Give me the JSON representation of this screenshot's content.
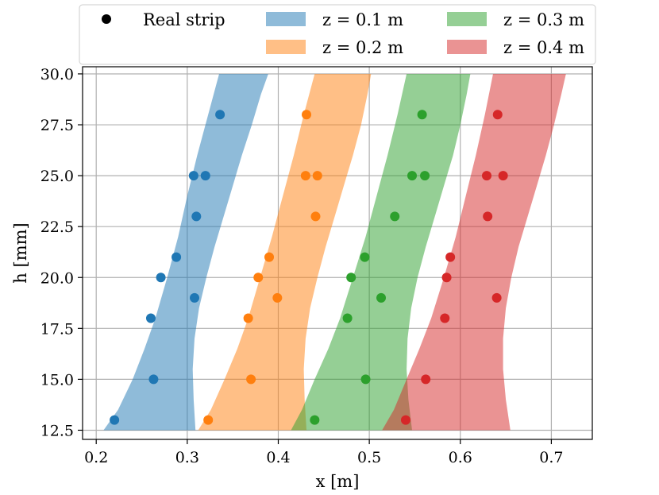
{
  "chart_data": {
    "type": "scatter",
    "xlabel": "x [m]",
    "ylabel": "h [mm]",
    "xlim": [
      0.185,
      0.745
    ],
    "ylim": [
      12.05,
      30.35
    ],
    "xticks": [
      "0.2",
      "0.3",
      "0.4",
      "0.5",
      "0.6",
      "0.7"
    ],
    "yticks": [
      "12.5",
      "15.0",
      "17.5",
      "20.0",
      "22.5",
      "25.0",
      "27.5",
      "30.0"
    ],
    "xtick_values": [
      0.2,
      0.3,
      0.4,
      0.5,
      0.6,
      0.7
    ],
    "ytick_values": [
      12.5,
      15.0,
      17.5,
      20.0,
      22.5,
      25.0,
      27.5,
      30.0
    ],
    "grid": true,
    "legend_position": "top",
    "legend": {
      "marker_label": "Real strip",
      "entries": [
        "z = 0.1 m",
        "z = 0.2 m",
        "z = 0.3 m",
        "z = 0.4 m"
      ]
    },
    "bands": [
      {
        "name": "z = 0.1 m",
        "color": "#1f77b4",
        "left": [
          [
            0.208,
            12.5
          ],
          [
            0.224,
            13.5
          ],
          [
            0.24,
            15.0
          ],
          [
            0.253,
            16.5
          ],
          [
            0.265,
            18.0
          ],
          [
            0.278,
            20.0
          ],
          [
            0.29,
            22.0
          ],
          [
            0.3,
            24.0
          ],
          [
            0.311,
            26.0
          ],
          [
            0.323,
            28.0
          ],
          [
            0.335,
            30.0
          ]
        ],
        "right": [
          [
            0.309,
            12.5
          ],
          [
            0.307,
            14.0
          ],
          [
            0.306,
            15.5
          ],
          [
            0.308,
            17.0
          ],
          [
            0.313,
            18.5
          ],
          [
            0.321,
            20.0
          ],
          [
            0.33,
            21.5
          ],
          [
            0.34,
            23.0
          ],
          [
            0.35,
            24.5
          ],
          [
            0.36,
            26.0
          ],
          [
            0.371,
            27.5
          ],
          [
            0.381,
            29.0
          ],
          [
            0.389,
            30.0
          ]
        ]
      },
      {
        "name": "z = 0.2 m",
        "color": "#ff7f0e",
        "left": [
          [
            0.312,
            12.5
          ],
          [
            0.326,
            13.5
          ],
          [
            0.341,
            15.0
          ],
          [
            0.355,
            16.5
          ],
          [
            0.367,
            18.0
          ],
          [
            0.38,
            20.0
          ],
          [
            0.393,
            22.0
          ],
          [
            0.405,
            24.0
          ],
          [
            0.417,
            26.0
          ],
          [
            0.428,
            28.0
          ],
          [
            0.44,
            30.0
          ]
        ],
        "right": [
          [
            0.431,
            12.5
          ],
          [
            0.429,
            14.0
          ],
          [
            0.428,
            15.5
          ],
          [
            0.43,
            17.0
          ],
          [
            0.435,
            18.5
          ],
          [
            0.443,
            20.0
          ],
          [
            0.452,
            21.5
          ],
          [
            0.462,
            23.0
          ],
          [
            0.472,
            24.5
          ],
          [
            0.482,
            26.0
          ],
          [
            0.491,
            27.5
          ],
          [
            0.498,
            29.0
          ],
          [
            0.502,
            30.0
          ]
        ]
      },
      {
        "name": "z = 0.3 m",
        "color": "#2ca02c",
        "left": [
          [
            0.414,
            12.5
          ],
          [
            0.426,
            13.5
          ],
          [
            0.44,
            15.0
          ],
          [
            0.455,
            16.5
          ],
          [
            0.468,
            18.0
          ],
          [
            0.482,
            20.0
          ],
          [
            0.496,
            22.0
          ],
          [
            0.508,
            24.0
          ],
          [
            0.52,
            26.0
          ],
          [
            0.531,
            28.0
          ],
          [
            0.541,
            30.0
          ]
        ],
        "right": [
          [
            0.547,
            12.5
          ],
          [
            0.543,
            14.0
          ],
          [
            0.541,
            15.5
          ],
          [
            0.542,
            17.0
          ],
          [
            0.546,
            18.5
          ],
          [
            0.553,
            20.0
          ],
          [
            0.562,
            21.5
          ],
          [
            0.572,
            23.0
          ],
          [
            0.582,
            24.5
          ],
          [
            0.592,
            26.0
          ],
          [
            0.6,
            27.5
          ],
          [
            0.607,
            29.0
          ],
          [
            0.611,
            30.0
          ]
        ]
      },
      {
        "name": "z = 0.4 m",
        "color": "#d62728",
        "left": [
          [
            0.514,
            12.5
          ],
          [
            0.527,
            13.5
          ],
          [
            0.541,
            15.0
          ],
          [
            0.555,
            16.5
          ],
          [
            0.568,
            18.0
          ],
          [
            0.582,
            20.0
          ],
          [
            0.595,
            22.0
          ],
          [
            0.606,
            24.0
          ],
          [
            0.617,
            26.0
          ],
          [
            0.627,
            28.0
          ],
          [
            0.636,
            30.0
          ]
        ],
        "right": [
          [
            0.655,
            12.5
          ],
          [
            0.65,
            14.0
          ],
          [
            0.647,
            15.5
          ],
          [
            0.647,
            17.0
          ],
          [
            0.65,
            18.5
          ],
          [
            0.656,
            20.0
          ],
          [
            0.664,
            21.5
          ],
          [
            0.674,
            23.0
          ],
          [
            0.684,
            24.5
          ],
          [
            0.694,
            26.0
          ],
          [
            0.703,
            27.5
          ],
          [
            0.711,
            29.0
          ],
          [
            0.716,
            30.0
          ]
        ]
      }
    ],
    "series": [
      {
        "color": "#1f77b4",
        "points": [
          [
            0.336,
            28.0
          ],
          [
            0.307,
            25.0
          ],
          [
            0.32,
            25.0
          ],
          [
            0.31,
            23.0
          ],
          [
            0.288,
            21.0
          ],
          [
            0.271,
            20.0
          ],
          [
            0.308,
            19.0
          ],
          [
            0.26,
            18.0
          ],
          [
            0.263,
            15.0
          ],
          [
            0.22,
            13.0
          ]
        ]
      },
      {
        "color": "#ff7f0e",
        "points": [
          [
            0.431,
            28.0
          ],
          [
            0.43,
            25.0
          ],
          [
            0.443,
            25.0
          ],
          [
            0.441,
            23.0
          ],
          [
            0.39,
            21.0
          ],
          [
            0.378,
            20.0
          ],
          [
            0.399,
            19.0
          ],
          [
            0.367,
            18.0
          ],
          [
            0.37,
            15.0
          ],
          [
            0.323,
            13.0
          ]
        ]
      },
      {
        "color": "#2ca02c",
        "points": [
          [
            0.558,
            28.0
          ],
          [
            0.547,
            25.0
          ],
          [
            0.561,
            25.0
          ],
          [
            0.528,
            23.0
          ],
          [
            0.495,
            21.0
          ],
          [
            0.48,
            20.0
          ],
          [
            0.513,
            19.0
          ],
          [
            0.476,
            18.0
          ],
          [
            0.496,
            15.0
          ],
          [
            0.44,
            13.0
          ]
        ]
      },
      {
        "color": "#d62728",
        "points": [
          [
            0.641,
            28.0
          ],
          [
            0.629,
            25.0
          ],
          [
            0.647,
            25.0
          ],
          [
            0.63,
            23.0
          ],
          [
            0.589,
            21.0
          ],
          [
            0.585,
            20.0
          ],
          [
            0.64,
            19.0
          ],
          [
            0.583,
            18.0
          ],
          [
            0.562,
            15.0
          ],
          [
            0.54,
            13.0
          ]
        ]
      }
    ]
  }
}
